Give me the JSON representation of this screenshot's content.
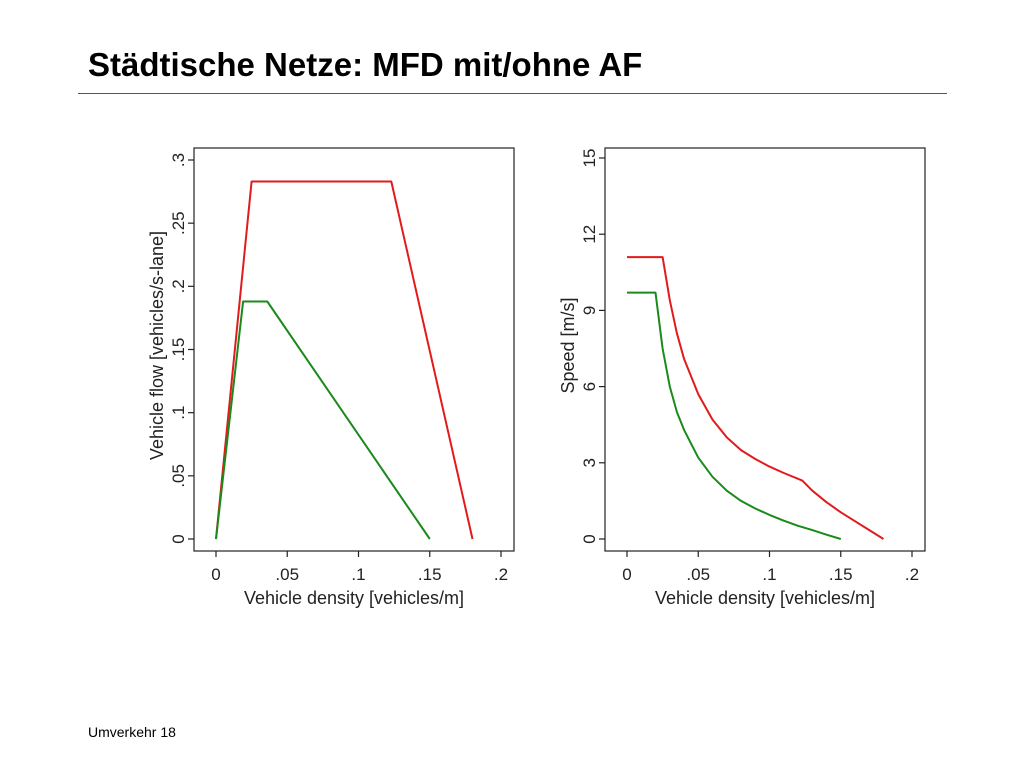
{
  "slide": {
    "title": "Städtische Netze: MFD mit/ohne AF",
    "footer": "Umverkehr 18"
  },
  "colors": {
    "series_red": "#e31a1c",
    "series_green": "#1a8a1a",
    "frame": "#222222"
  },
  "chart_data": [
    {
      "type": "line",
      "xlabel": "Vehicle density [vehicles/m]",
      "ylabel": "Vehicle flow [vehicles/s-lane]",
      "xlim": [
        0,
        0.2
      ],
      "ylim": [
        0,
        0.3
      ],
      "x_ticks": [
        0,
        0.05,
        0.1,
        0.15,
        0.2
      ],
      "x_tick_labels": [
        "0",
        ".05",
        ".1",
        ".15",
        ".2"
      ],
      "y_ticks": [
        0,
        0.05,
        0.1,
        0.15,
        0.2,
        0.25,
        0.3
      ],
      "y_tick_labels": [
        "0",
        ".05",
        ".1",
        ".15",
        ".2",
        ".25",
        ".3"
      ],
      "grid": false,
      "series": [
        {
          "color": "#e31a1c",
          "x": [
            0,
            0.025,
            0.123,
            0.18
          ],
          "y": [
            0,
            0.283,
            0.283,
            0
          ]
        },
        {
          "color": "#1a8a1a",
          "x": [
            0,
            0.019,
            0.036,
            0.15
          ],
          "y": [
            0,
            0.188,
            0.188,
            0
          ]
        }
      ]
    },
    {
      "type": "line",
      "xlabel": "Vehicle density [vehicles/m]",
      "ylabel": "Speed [m/s]",
      "xlim": [
        0,
        0.2
      ],
      "ylim": [
        0,
        15
      ],
      "x_ticks": [
        0,
        0.05,
        0.1,
        0.15,
        0.2
      ],
      "x_tick_labels": [
        "0",
        ".05",
        ".1",
        ".15",
        ".2"
      ],
      "y_ticks": [
        0,
        3,
        6,
        9,
        12,
        15
      ],
      "y_tick_labels": [
        "0",
        "3",
        "6",
        "9",
        "12",
        "15"
      ],
      "grid": false,
      "series": [
        {
          "color": "#e31a1c",
          "x": [
            0,
            0.025,
            0.03,
            0.035,
            0.04,
            0.05,
            0.06,
            0.07,
            0.08,
            0.09,
            0.1,
            0.11,
            0.123,
            0.13,
            0.14,
            0.15,
            0.16,
            0.17,
            0.18
          ],
          "y": [
            11.1,
            11.1,
            9.4,
            8.1,
            7.1,
            5.7,
            4.7,
            4.0,
            3.5,
            3.15,
            2.85,
            2.6,
            2.3,
            1.9,
            1.45,
            1.05,
            0.7,
            0.35,
            0
          ]
        },
        {
          "color": "#1a8a1a",
          "x": [
            0,
            0.02,
            0.025,
            0.03,
            0.035,
            0.04,
            0.05,
            0.06,
            0.07,
            0.08,
            0.09,
            0.1,
            0.11,
            0.12,
            0.13,
            0.14,
            0.15
          ],
          "y": [
            9.7,
            9.7,
            7.5,
            6.0,
            5.0,
            4.3,
            3.2,
            2.45,
            1.9,
            1.5,
            1.2,
            0.95,
            0.72,
            0.52,
            0.35,
            0.17,
            0
          ]
        }
      ]
    }
  ]
}
